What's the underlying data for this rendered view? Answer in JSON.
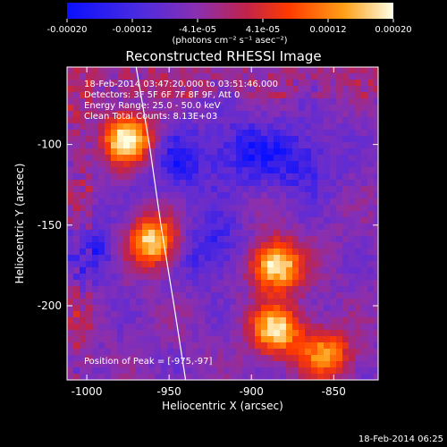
{
  "colorbar": {
    "ticks": [
      "-0.00020",
      "-0.00012",
      "-4.1e-05",
      "4.1e-05",
      "0.00012",
      "0.00020"
    ],
    "unit": "(photons cm⁻² s⁻¹ asec⁻²)",
    "colors": [
      "#0a10ff",
      "#5b2bd8",
      "#8a2fb0",
      "#c0234a",
      "#ff3a00",
      "#ff9a10",
      "#ffffe0"
    ]
  },
  "chart_data": {
    "type": "heatmap",
    "title": "Reconstructed RHESSI Image",
    "xlabel": "Heliocentric X (arcsec)",
    "ylabel": "Heliocentric Y (arcsec)",
    "xlim": [
      -1012,
      -823
    ],
    "ylim": [
      -246,
      -52
    ],
    "xticks": [
      "-1000",
      "-950",
      "-900",
      "-850"
    ],
    "yticks": [
      "-100",
      "-150",
      "-200"
    ],
    "ytick_values": [
      -100,
      -150,
      -200
    ],
    "xtick_values": [
      -1000,
      -950,
      -900,
      -850
    ],
    "limb_curve": [
      [
        -970,
        -52
      ],
      [
        -962,
        -100
      ],
      [
        -955,
        -150
      ],
      [
        -947,
        -200
      ],
      [
        -940,
        -246
      ]
    ],
    "peak": [
      -975,
      -97
    ],
    "bright_sources": [
      {
        "x": -975,
        "y": -97,
        "intensity": 0.0002
      },
      {
        "x": -960,
        "y": -160,
        "intensity": 0.00018
      },
      {
        "x": -885,
        "y": -175,
        "intensity": 0.0002
      },
      {
        "x": -885,
        "y": -215,
        "intensity": 0.00017
      },
      {
        "x": -855,
        "y": -230,
        "intensity": 0.00014
      }
    ],
    "annotations": {
      "time_range": "18-Feb-2014 03:47:20.000 to 03:51:46.000",
      "detectors": "Detectors: 3F 5F 6F 7F 8F 9F, Att 0",
      "energy": "Energy Range: 25.0 - 50.0 keV",
      "clean": "Clean    Total Counts: 8.13E+03",
      "peak_label": "Position of Peak = [-975,-97]"
    }
  },
  "footer": {
    "timestamp": "18-Feb-2014 06:25"
  }
}
